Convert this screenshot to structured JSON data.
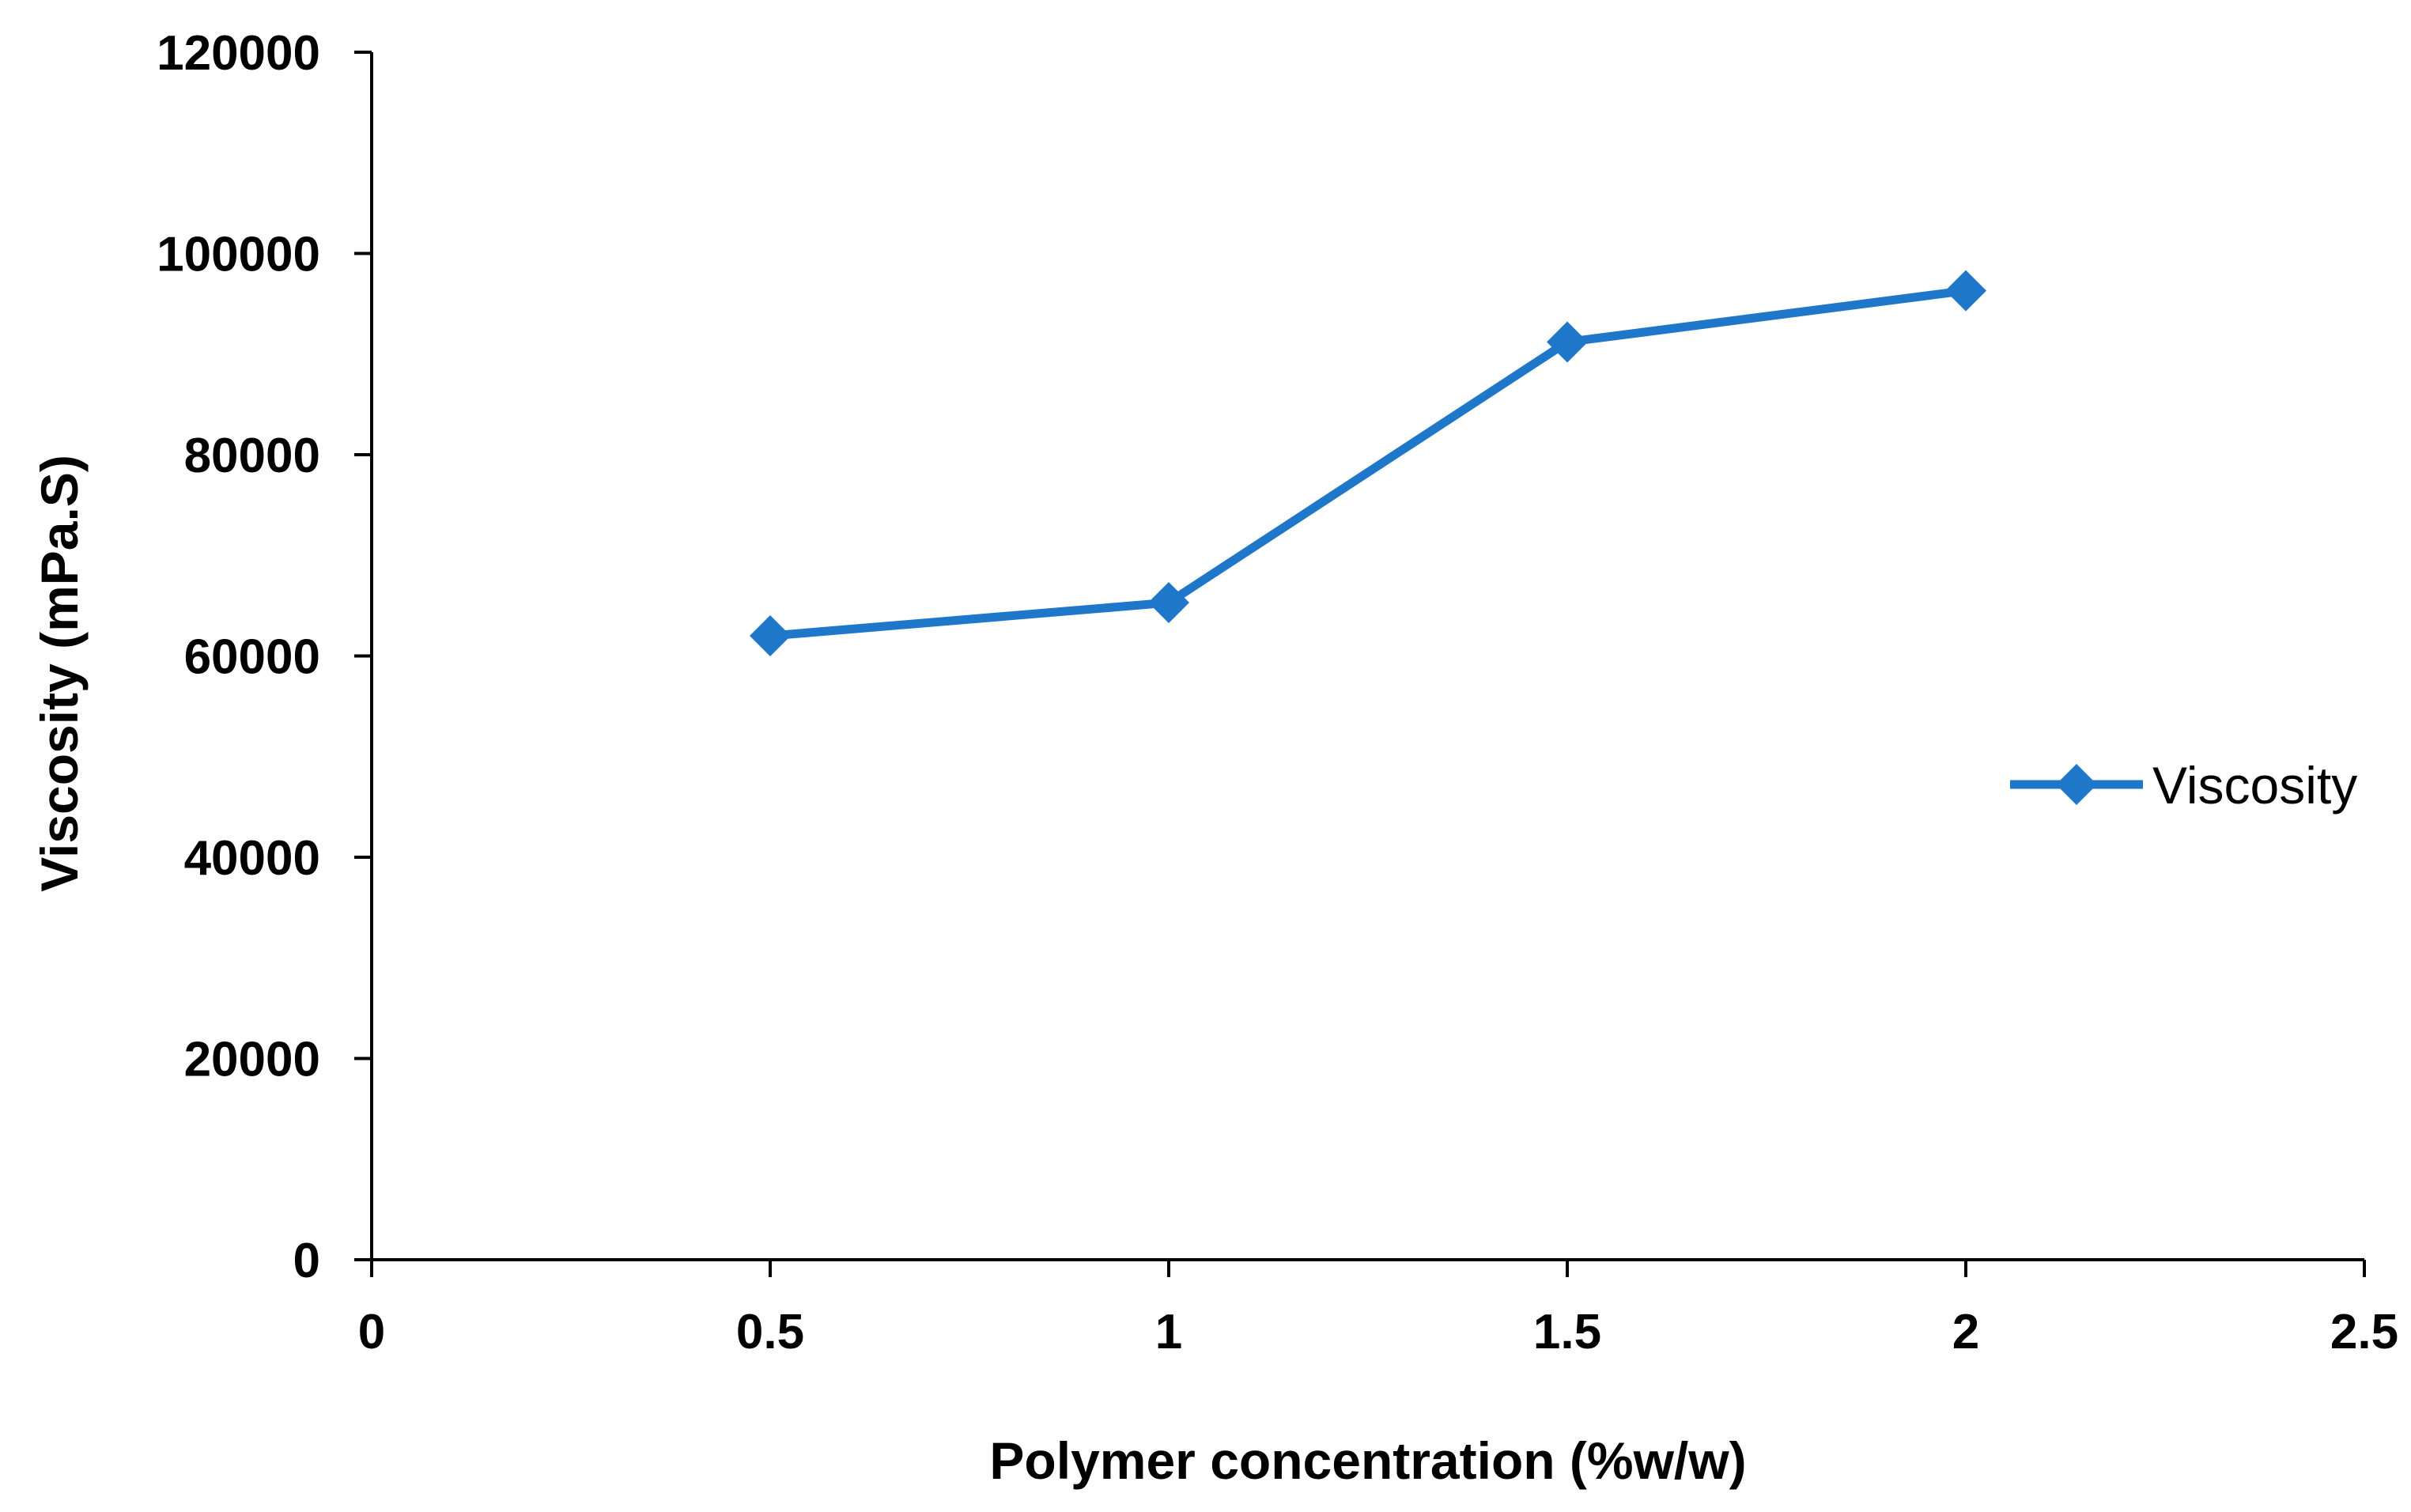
{
  "chart_data": {
    "type": "scatter",
    "title": "",
    "xlabel": "Polymer concentration (%w/w)",
    "ylabel": "Viscosity (mPa.S)",
    "xlim": [
      0,
      2.5
    ],
    "ylim": [
      0,
      120000
    ],
    "x_ticks": [
      0,
      0.5,
      1,
      1.5,
      2,
      2.5
    ],
    "x_tick_labels": [
      "0",
      "0.5",
      "1",
      "1.5",
      "2",
      "2.5"
    ],
    "y_ticks": [
      0,
      20000,
      40000,
      60000,
      80000,
      100000,
      120000
    ],
    "y_tick_labels": [
      "0",
      "20000",
      "40000",
      "60000",
      "80000",
      "100000",
      "120000"
    ],
    "grid": false,
    "legend_position": "right",
    "marker": "diamond",
    "series": [
      {
        "name": "Viscosity",
        "color": "#1f77c9",
        "x": [
          0.5,
          1,
          1.5,
          2
        ],
        "y": [
          62000,
          65300,
          91200,
          96300
        ]
      }
    ]
  }
}
